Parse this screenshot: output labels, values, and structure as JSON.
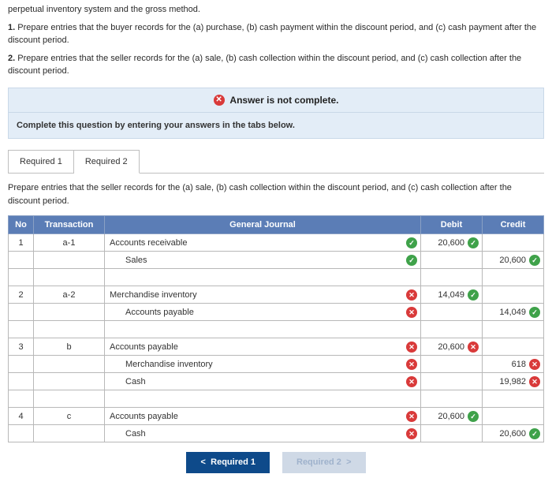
{
  "intro": {
    "line0": "perpetual inventory system and the gross method.",
    "q1_label": "1.",
    "q1_text": " Prepare entries that the buyer records for the (a) purchase, (b) cash payment within the discount period, and (c) cash payment after the discount period.",
    "q2_label": "2.",
    "q2_text": " Prepare entries that the seller records for the (a) sale, (b) cash collection within the discount period, and (c) cash collection after the discount period."
  },
  "status": {
    "text": "Answer is not complete."
  },
  "complete_bar": "Complete this question by entering your answers in the tabs below.",
  "tabs": [
    {
      "label": "Required 1"
    },
    {
      "label": "Required 2"
    }
  ],
  "tab_instruction": "Prepare entries that the seller records for the (a) sale, (b) cash collection within the discount period, and (c) cash collection after the discount period.",
  "headers": {
    "no": "No",
    "transaction": "Transaction",
    "general_journal": "General Journal",
    "debit": "Debit",
    "credit": "Credit"
  },
  "rows": [
    {
      "no": "1",
      "trx": "a-1",
      "account": "Accounts receivable",
      "indent": false,
      "mark": "ok",
      "debit": "20,600",
      "debit_mark": "ok",
      "credit": "",
      "credit_mark": ""
    },
    {
      "no": "",
      "trx": "",
      "account": "Sales",
      "indent": true,
      "mark": "ok",
      "debit": "",
      "debit_mark": "",
      "credit": "20,600",
      "credit_mark": "ok"
    },
    {
      "spacer": true
    },
    {
      "no": "2",
      "trx": "a-2",
      "account": "Merchandise inventory",
      "indent": false,
      "mark": "bad",
      "debit": "14,049",
      "debit_mark": "ok",
      "credit": "",
      "credit_mark": ""
    },
    {
      "no": "",
      "trx": "",
      "account": "Accounts payable",
      "indent": true,
      "mark": "bad",
      "debit": "",
      "debit_mark": "",
      "credit": "14,049",
      "credit_mark": "ok"
    },
    {
      "spacer": true
    },
    {
      "no": "3",
      "trx": "b",
      "account": "Accounts payable",
      "indent": false,
      "mark": "bad",
      "debit": "20,600",
      "debit_mark": "bad",
      "credit": "",
      "credit_mark": "",
      "wrong": true
    },
    {
      "no": "",
      "trx": "",
      "account": "Merchandise inventory",
      "indent": true,
      "mark": "bad",
      "debit": "",
      "debit_mark": "",
      "credit": "618",
      "credit_mark": "bad",
      "wrong": true
    },
    {
      "no": "",
      "trx": "",
      "account": "Cash",
      "indent": true,
      "mark": "bad",
      "debit": "",
      "debit_mark": "",
      "credit": "19,982",
      "credit_mark": "bad",
      "wrong": true
    },
    {
      "spacer": true
    },
    {
      "no": "4",
      "trx": "c",
      "account": "Accounts payable",
      "indent": false,
      "mark": "bad",
      "debit": "20,600",
      "debit_mark": "ok",
      "credit": "",
      "credit_mark": ""
    },
    {
      "no": "",
      "trx": "",
      "account": "Cash",
      "indent": true,
      "mark": "bad",
      "debit": "",
      "debit_mark": "",
      "credit": "20,600",
      "credit_mark": "ok"
    }
  ],
  "nav": {
    "prev_label": "Required 1",
    "next_label": "Required 2"
  }
}
